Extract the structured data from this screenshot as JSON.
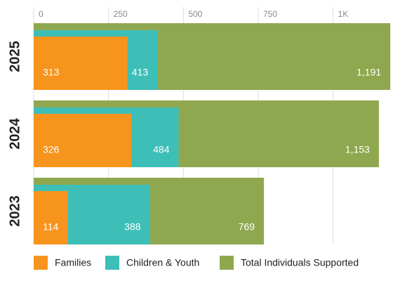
{
  "chart_data": {
    "type": "overlapping-bar",
    "categories": [
      "2025",
      "2024",
      "2023"
    ],
    "series": [
      {
        "name": "Families",
        "color": "#f7941d",
        "values": [
          313,
          326,
          114
        ]
      },
      {
        "name": "Children & Youth",
        "color": "#3dbfb8",
        "values": [
          413,
          484,
          388
        ]
      },
      {
        "name": "Total Individuals Supported",
        "color": "#8fa84f",
        "values": [
          1191,
          1153,
          769
        ],
        "value_labels": [
          "1,191",
          "1,153",
          "769"
        ]
      }
    ],
    "xlim": [
      0,
      1200
    ],
    "xticks": [
      0,
      250,
      500,
      750,
      {
        "value": 1000,
        "label": "1K"
      }
    ],
    "grid": true
  }
}
